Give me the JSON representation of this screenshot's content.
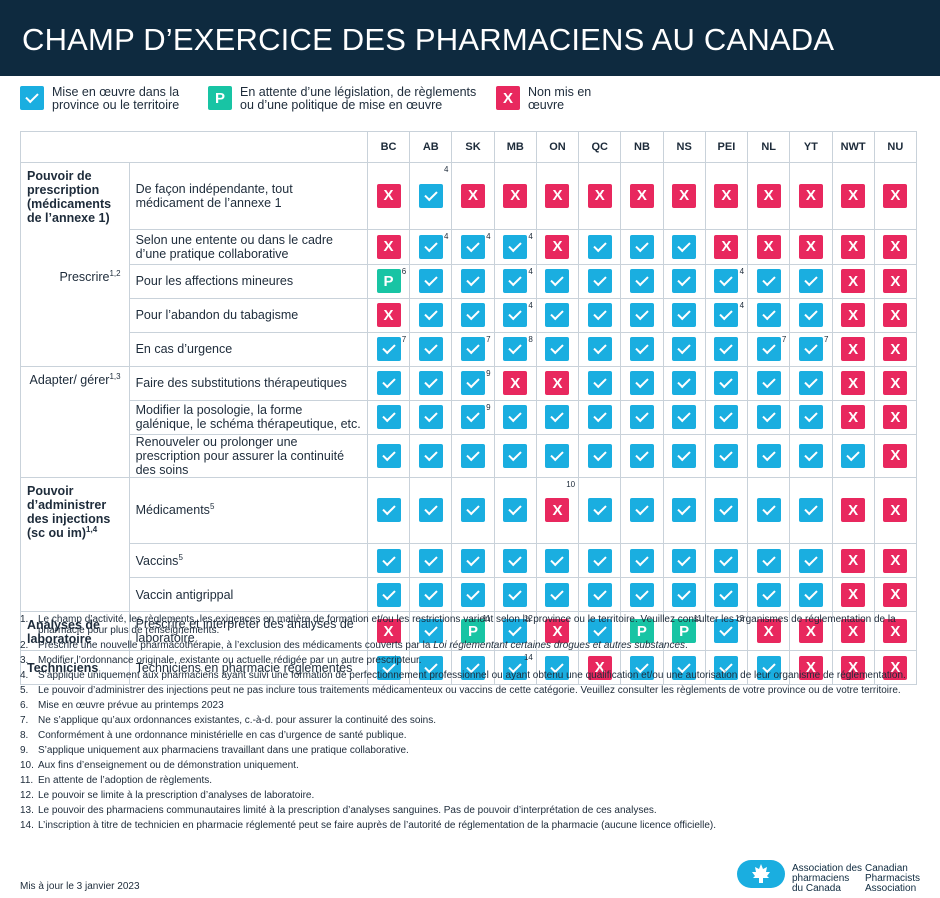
{
  "title": "CHAMP D’EXERCICE DES PHARMACIENS AU CANADA",
  "legend": [
    {
      "symbol": "yes",
      "glyph": "",
      "label": "Mise en œuvre dans la province ou le territoire"
    },
    {
      "symbol": "pend",
      "glyph": "P",
      "label": "En attente d’une législation, de règlements ou d’une politique de mise en œuvre"
    },
    {
      "symbol": "no",
      "glyph": "X",
      "label": "Non mis en œuvre"
    }
  ],
  "glyphs": {
    "no": "X",
    "pend": "P",
    "yes": ""
  },
  "colors": {
    "header_bg": "#0e2a3f",
    "yes": "#1aaee0",
    "pending": "#18c4a4",
    "no": "#e8285e"
  },
  "jurisdictions": [
    "BC",
    "AB",
    "SK",
    "MB",
    "ON",
    "QC",
    "NB",
    "NS",
    "PEI",
    "NL",
    "YT",
    "NWT",
    "NU"
  ],
  "categories": {
    "prescription": "Pouvoir de prescription (médicaments de l’annexe 1)",
    "prescrire": "Prescrire",
    "prescrire_sup": "1,2",
    "adapter": "Adapter/ gérer",
    "adapter_sup": "1,3",
    "injections": "Pouvoir d’administrer des injections (sc ou im)",
    "injections_sup": "1,4",
    "analyses": "Analyses de laboratoire",
    "techniciens": "Techniciens"
  },
  "rows": [
    {
      "label": "De façon indépendante, tout médicament de l’annexe 1",
      "sup": "",
      "cells": [
        {
          "s": "no",
          "n": ""
        },
        {
          "s": "yes",
          "n": "4"
        },
        {
          "s": "no",
          "n": ""
        },
        {
          "s": "no",
          "n": ""
        },
        {
          "s": "no",
          "n": ""
        },
        {
          "s": "no",
          "n": ""
        },
        {
          "s": "no",
          "n": ""
        },
        {
          "s": "no",
          "n": ""
        },
        {
          "s": "no",
          "n": ""
        },
        {
          "s": "no",
          "n": ""
        },
        {
          "s": "no",
          "n": ""
        },
        {
          "s": "no",
          "n": ""
        },
        {
          "s": "no",
          "n": ""
        }
      ]
    },
    {
      "label": "Selon une entente ou dans le cadre d’une pratique collaborative",
      "sup": "",
      "cells": [
        {
          "s": "no",
          "n": ""
        },
        {
          "s": "yes",
          "n": "4"
        },
        {
          "s": "yes",
          "n": "4"
        },
        {
          "s": "yes",
          "n": "4"
        },
        {
          "s": "no",
          "n": ""
        },
        {
          "s": "yes",
          "n": ""
        },
        {
          "s": "yes",
          "n": ""
        },
        {
          "s": "yes",
          "n": ""
        },
        {
          "s": "no",
          "n": ""
        },
        {
          "s": "no",
          "n": ""
        },
        {
          "s": "no",
          "n": ""
        },
        {
          "s": "no",
          "n": ""
        },
        {
          "s": "no",
          "n": ""
        }
      ]
    },
    {
      "label": "Pour les affections mineures",
      "sup": "",
      "cells": [
        {
          "s": "pend",
          "n": "6"
        },
        {
          "s": "yes",
          "n": ""
        },
        {
          "s": "yes",
          "n": ""
        },
        {
          "s": "yes",
          "n": "4"
        },
        {
          "s": "yes",
          "n": ""
        },
        {
          "s": "yes",
          "n": ""
        },
        {
          "s": "yes",
          "n": ""
        },
        {
          "s": "yes",
          "n": ""
        },
        {
          "s": "yes",
          "n": "4"
        },
        {
          "s": "yes",
          "n": ""
        },
        {
          "s": "yes",
          "n": ""
        },
        {
          "s": "no",
          "n": ""
        },
        {
          "s": "no",
          "n": ""
        }
      ]
    },
    {
      "label": "Pour l’abandon du tabagisme",
      "sup": "",
      "cells": [
        {
          "s": "no",
          "n": ""
        },
        {
          "s": "yes",
          "n": ""
        },
        {
          "s": "yes",
          "n": ""
        },
        {
          "s": "yes",
          "n": "4"
        },
        {
          "s": "yes",
          "n": ""
        },
        {
          "s": "yes",
          "n": ""
        },
        {
          "s": "yes",
          "n": ""
        },
        {
          "s": "yes",
          "n": ""
        },
        {
          "s": "yes",
          "n": "4"
        },
        {
          "s": "yes",
          "n": ""
        },
        {
          "s": "yes",
          "n": ""
        },
        {
          "s": "no",
          "n": ""
        },
        {
          "s": "no",
          "n": ""
        }
      ]
    },
    {
      "label": "En cas d’urgence",
      "sup": "",
      "cells": [
        {
          "s": "yes",
          "n": "7"
        },
        {
          "s": "yes",
          "n": ""
        },
        {
          "s": "yes",
          "n": "7"
        },
        {
          "s": "yes",
          "n": "8"
        },
        {
          "s": "yes",
          "n": ""
        },
        {
          "s": "yes",
          "n": ""
        },
        {
          "s": "yes",
          "n": ""
        },
        {
          "s": "yes",
          "n": ""
        },
        {
          "s": "yes",
          "n": ""
        },
        {
          "s": "yes",
          "n": "7"
        },
        {
          "s": "yes",
          "n": "7"
        },
        {
          "s": "no",
          "n": ""
        },
        {
          "s": "no",
          "n": ""
        }
      ]
    },
    {
      "label": "Faire des substitutions thérapeutiques",
      "sup": "",
      "cells": [
        {
          "s": "yes",
          "n": ""
        },
        {
          "s": "yes",
          "n": ""
        },
        {
          "s": "yes",
          "n": "9"
        },
        {
          "s": "no",
          "n": ""
        },
        {
          "s": "no",
          "n": ""
        },
        {
          "s": "yes",
          "n": ""
        },
        {
          "s": "yes",
          "n": ""
        },
        {
          "s": "yes",
          "n": ""
        },
        {
          "s": "yes",
          "n": ""
        },
        {
          "s": "yes",
          "n": ""
        },
        {
          "s": "yes",
          "n": ""
        },
        {
          "s": "no",
          "n": ""
        },
        {
          "s": "no",
          "n": ""
        }
      ]
    },
    {
      "label": "Modifier la posologie, la forme galénique, le schéma thérapeutique, etc.",
      "sup": "",
      "cells": [
        {
          "s": "yes",
          "n": ""
        },
        {
          "s": "yes",
          "n": ""
        },
        {
          "s": "yes",
          "n": "9"
        },
        {
          "s": "yes",
          "n": ""
        },
        {
          "s": "yes",
          "n": ""
        },
        {
          "s": "yes",
          "n": ""
        },
        {
          "s": "yes",
          "n": ""
        },
        {
          "s": "yes",
          "n": ""
        },
        {
          "s": "yes",
          "n": ""
        },
        {
          "s": "yes",
          "n": ""
        },
        {
          "s": "yes",
          "n": ""
        },
        {
          "s": "no",
          "n": ""
        },
        {
          "s": "no",
          "n": ""
        }
      ]
    },
    {
      "label": "Renouveler ou prolonger une prescription pour assurer la continuité des soins",
      "sup": "",
      "cells": [
        {
          "s": "yes",
          "n": ""
        },
        {
          "s": "yes",
          "n": ""
        },
        {
          "s": "yes",
          "n": ""
        },
        {
          "s": "yes",
          "n": ""
        },
        {
          "s": "yes",
          "n": ""
        },
        {
          "s": "yes",
          "n": ""
        },
        {
          "s": "yes",
          "n": ""
        },
        {
          "s": "yes",
          "n": ""
        },
        {
          "s": "yes",
          "n": ""
        },
        {
          "s": "yes",
          "n": ""
        },
        {
          "s": "yes",
          "n": ""
        },
        {
          "s": "yes",
          "n": ""
        },
        {
          "s": "no",
          "n": ""
        }
      ]
    },
    {
      "label": "Médicaments",
      "sup": "5",
      "cells": [
        {
          "s": "yes",
          "n": ""
        },
        {
          "s": "yes",
          "n": ""
        },
        {
          "s": "yes",
          "n": ""
        },
        {
          "s": "yes",
          "n": ""
        },
        {
          "s": "no",
          "n": "10"
        },
        {
          "s": "yes",
          "n": ""
        },
        {
          "s": "yes",
          "n": ""
        },
        {
          "s": "yes",
          "n": ""
        },
        {
          "s": "yes",
          "n": ""
        },
        {
          "s": "yes",
          "n": ""
        },
        {
          "s": "yes",
          "n": ""
        },
        {
          "s": "no",
          "n": ""
        },
        {
          "s": "no",
          "n": ""
        }
      ]
    },
    {
      "label": "Vaccins",
      "sup": "5",
      "cells": [
        {
          "s": "yes",
          "n": ""
        },
        {
          "s": "yes",
          "n": ""
        },
        {
          "s": "yes",
          "n": ""
        },
        {
          "s": "yes",
          "n": ""
        },
        {
          "s": "yes",
          "n": ""
        },
        {
          "s": "yes",
          "n": ""
        },
        {
          "s": "yes",
          "n": ""
        },
        {
          "s": "yes",
          "n": ""
        },
        {
          "s": "yes",
          "n": ""
        },
        {
          "s": "yes",
          "n": ""
        },
        {
          "s": "yes",
          "n": ""
        },
        {
          "s": "no",
          "n": ""
        },
        {
          "s": "no",
          "n": ""
        }
      ]
    },
    {
      "label": "Vaccin antigrippal",
      "sup": "",
      "cells": [
        {
          "s": "yes",
          "n": ""
        },
        {
          "s": "yes",
          "n": ""
        },
        {
          "s": "yes",
          "n": ""
        },
        {
          "s": "yes",
          "n": ""
        },
        {
          "s": "yes",
          "n": ""
        },
        {
          "s": "yes",
          "n": ""
        },
        {
          "s": "yes",
          "n": ""
        },
        {
          "s": "yes",
          "n": ""
        },
        {
          "s": "yes",
          "n": ""
        },
        {
          "s": "yes",
          "n": ""
        },
        {
          "s": "yes",
          "n": ""
        },
        {
          "s": "no",
          "n": ""
        },
        {
          "s": "no",
          "n": ""
        }
      ]
    },
    {
      "label": "Prescrire et interpréter des analyses de laboratoire",
      "sup": "",
      "cells": [
        {
          "s": "no",
          "n": ""
        },
        {
          "s": "yes",
          "n": ""
        },
        {
          "s": "pend",
          "n": "11"
        },
        {
          "s": "yes",
          "n": "12"
        },
        {
          "s": "no",
          "n": ""
        },
        {
          "s": "yes",
          "n": ""
        },
        {
          "s": "pend",
          "n": ""
        },
        {
          "s": "pend",
          "n": "11"
        },
        {
          "s": "yes",
          "n": "13"
        },
        {
          "s": "no",
          "n": ""
        },
        {
          "s": "no",
          "n": ""
        },
        {
          "s": "no",
          "n": ""
        },
        {
          "s": "no",
          "n": ""
        }
      ]
    },
    {
      "label": "Techniciens en pharmacie réglementés",
      "sup": "",
      "cells": [
        {
          "s": "yes",
          "n": ""
        },
        {
          "s": "yes",
          "n": ""
        },
        {
          "s": "yes",
          "n": ""
        },
        {
          "s": "yes",
          "n": "14"
        },
        {
          "s": "yes",
          "n": ""
        },
        {
          "s": "no",
          "n": ""
        },
        {
          "s": "yes",
          "n": ""
        },
        {
          "s": "yes",
          "n": ""
        },
        {
          "s": "yes",
          "n": ""
        },
        {
          "s": "yes",
          "n": ""
        },
        {
          "s": "no",
          "n": ""
        },
        {
          "s": "no",
          "n": ""
        },
        {
          "s": "no",
          "n": ""
        }
      ]
    }
  ],
  "footnotes": [
    {
      "n": "1.",
      "pre": "Le champ d’activité, les règlements, les exigences en matière de formation et/ou les restrictions varient selon la province ou le territoire. Veuillez consulter les organismes de réglementation de la pharmacie pour plus de renseignements.",
      "em": "",
      "post": ""
    },
    {
      "n": "2.",
      "pre": "Prescrire une nouvelle pharmacothérapie, à l’exclusion des médicaments couverts par la ",
      "em": "Loi réglementant certaines drogues et autres substances",
      "post": "."
    },
    {
      "n": "3.",
      "pre": "Modifier l’ordonnance originale, existante ou actuelle rédigée par un autre prescripteur.",
      "em": "",
      "post": ""
    },
    {
      "n": "4.",
      "pre": "S’applique uniquement aux pharmaciens ayant suivi une formation de perfectionnement professionnel ou ayant obtenu une qualification et/ou une autorisation de leur organisme de réglementation.",
      "em": "",
      "post": ""
    },
    {
      "n": "5.",
      "pre": "Le pouvoir d’administrer des injections peut ne pas inclure tous traitements médicamenteux ou vaccins de cette catégorie. Veuillez consulter les règlements de votre province ou de votre territoire.",
      "em": "",
      "post": ""
    },
    {
      "n": "6.",
      "pre": "Mise en œuvre prévue au printemps 2023",
      "em": "",
      "post": ""
    },
    {
      "n": "7.",
      "pre": "Ne s’applique qu’aux ordonnances existantes, c.-à-d. pour assurer la continuité des soins.",
      "em": "",
      "post": ""
    },
    {
      "n": "8.",
      "pre": "Conformément à une ordonnance ministérielle en cas d’urgence de santé publique.",
      "em": "",
      "post": ""
    },
    {
      "n": "9.",
      "pre": "S’applique uniquement aux pharmaciens travaillant dans une pratique collaborative.",
      "em": "",
      "post": ""
    },
    {
      "n": "10.",
      "pre": "Aux fins d’enseignement ou de démonstration uniquement.",
      "em": "",
      "post": ""
    },
    {
      "n": "11.",
      "pre": "En attente de l’adoption de règlements.",
      "em": "",
      "post": ""
    },
    {
      "n": "12.",
      "pre": "Le pouvoir se limite à la prescription d’analyses de laboratoire.",
      "em": "",
      "post": ""
    },
    {
      "n": "13.",
      "pre": "Le pouvoir des pharmaciens communautaires limité à la prescription d’analyses sanguines. Pas de pouvoir d’interprétation de ces analyses.",
      "em": "",
      "post": ""
    },
    {
      "n": "14.",
      "pre": "L’inscription à titre de technicien en pharmacie réglementé peut se faire auprès de l’autorité de réglementation de la pharmacie (aucune licence officielle).",
      "em": "",
      "post": ""
    }
  ],
  "updated": "Mis à jour le 3 janvier 2023",
  "logo": {
    "icon": "maple-leaf-pill-icon",
    "fr": [
      "Association des",
      "pharmaciens",
      "du Canada"
    ],
    "en": [
      "Canadian",
      "Pharmacists",
      "Association"
    ]
  }
}
